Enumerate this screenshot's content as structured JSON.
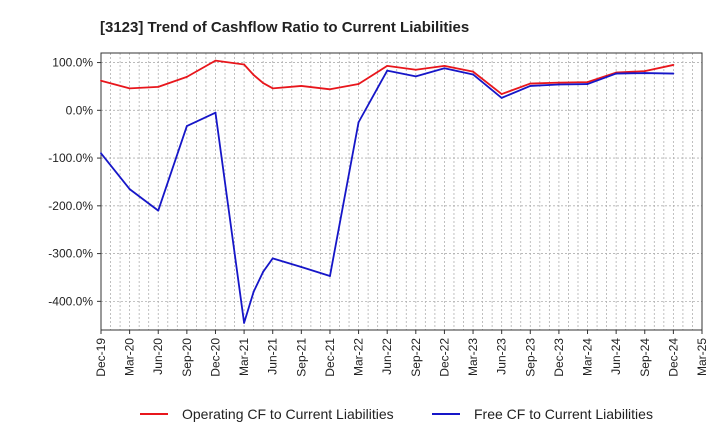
{
  "chart_data": {
    "type": "line",
    "title": "[3123]  Trend of Cashflow Ratio to Current Liabilities",
    "xlabel": "",
    "ylabel": "",
    "ylim": [
      -460,
      120
    ],
    "y_ticks": [
      100,
      0,
      -100,
      -200,
      -300,
      -400
    ],
    "y_tick_labels": [
      "100.0%",
      "0.0%",
      "-100.0%",
      "-200.0%",
      "-300.0%",
      "-400.0%"
    ],
    "x_range": [
      "Dec-19",
      "Mar-25"
    ],
    "x_ticks": [
      "Dec-19",
      "Mar-20",
      "Jun-20",
      "Sep-20",
      "Dec-20",
      "Mar-21",
      "Jun-21",
      "Sep-21",
      "Dec-21",
      "Mar-22",
      "Jun-22",
      "Sep-22",
      "Dec-22",
      "Mar-23",
      "Jun-23",
      "Sep-23",
      "Dec-23",
      "Mar-24",
      "Jun-24",
      "Sep-24",
      "Dec-24",
      "Mar-25"
    ],
    "grid": true,
    "legend_position": "bottom",
    "colors": {
      "operating": "#e8161c",
      "free": "#1616c8",
      "grid": "#b0b0b0",
      "axis": "#333333"
    },
    "series": [
      {
        "name": "Operating CF to Current Liabilities",
        "color": "#e8161c",
        "points": [
          {
            "x": "Dec-19",
            "y": 62
          },
          {
            "x": "Mar-20",
            "y": 46
          },
          {
            "x": "Jun-20",
            "y": 49
          },
          {
            "x": "Sep-20",
            "y": 70
          },
          {
            "x": "Dec-20",
            "y": 104
          },
          {
            "x": "Mar-21",
            "y": 96
          },
          {
            "x": "Apr-21",
            "y": 74
          },
          {
            "x": "May-21",
            "y": 57
          },
          {
            "x": "Jun-21",
            "y": 46
          },
          {
            "x": "Sep-21",
            "y": 51
          },
          {
            "x": "Dec-21",
            "y": 44
          },
          {
            "x": "Mar-22",
            "y": 55
          },
          {
            "x": "Jun-22",
            "y": 93
          },
          {
            "x": "Sep-22",
            "y": 85
          },
          {
            "x": "Dec-22",
            "y": 93
          },
          {
            "x": "Mar-23",
            "y": 81
          },
          {
            "x": "Jun-23",
            "y": 34
          },
          {
            "x": "Sep-23",
            "y": 56
          },
          {
            "x": "Dec-23",
            "y": 58
          },
          {
            "x": "Mar-24",
            "y": 59
          },
          {
            "x": "Jun-24",
            "y": 79
          },
          {
            "x": "Sep-24",
            "y": 82
          },
          {
            "x": "Dec-24",
            "y": 95
          }
        ]
      },
      {
        "name": "Free CF to Current Liabilities",
        "color": "#1616c8",
        "points": [
          {
            "x": "Dec-19",
            "y": -90
          },
          {
            "x": "Mar-20",
            "y": -165
          },
          {
            "x": "Jun-20",
            "y": -210
          },
          {
            "x": "Sep-20",
            "y": -33
          },
          {
            "x": "Dec-20",
            "y": -5
          },
          {
            "x": "Mar-21",
            "y": -445
          },
          {
            "x": "Apr-21",
            "y": -380
          },
          {
            "x": "May-21",
            "y": -338
          },
          {
            "x": "Jun-21",
            "y": -310
          },
          {
            "x": "Sep-21",
            "y": -328
          },
          {
            "x": "Dec-21",
            "y": -347
          },
          {
            "x": "Mar-22",
            "y": -25
          },
          {
            "x": "Jun-22",
            "y": 83
          },
          {
            "x": "Sep-22",
            "y": 71
          },
          {
            "x": "Dec-22",
            "y": 88
          },
          {
            "x": "Mar-23",
            "y": 75
          },
          {
            "x": "Jun-23",
            "y": 26
          },
          {
            "x": "Sep-23",
            "y": 51
          },
          {
            "x": "Dec-23",
            "y": 54
          },
          {
            "x": "Mar-24",
            "y": 55
          },
          {
            "x": "Jun-24",
            "y": 77
          },
          {
            "x": "Sep-24",
            "y": 78
          },
          {
            "x": "Dec-24",
            "y": 77
          }
        ]
      }
    ]
  }
}
